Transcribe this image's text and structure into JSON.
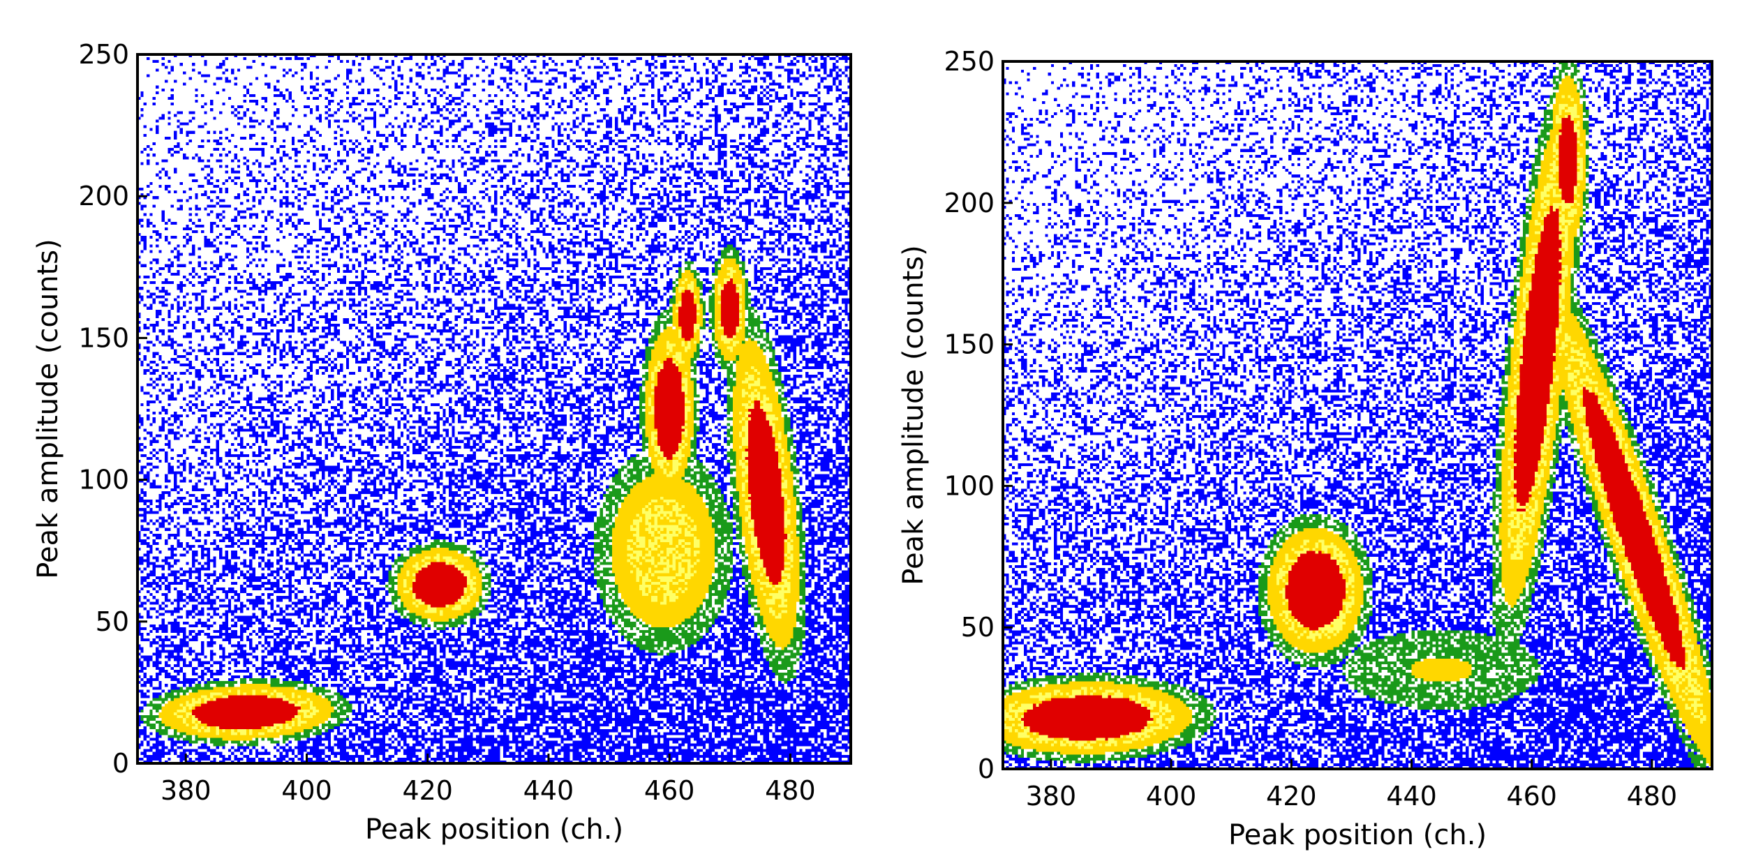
{
  "chart_data": [
    {
      "type": "heatmap",
      "title": "",
      "xlabel": "Peak position (ch.)",
      "ylabel": "Peak amplitude (counts)",
      "xlim": [
        372,
        490
      ],
      "ylim": [
        0,
        250
      ],
      "xticks": [
        380,
        400,
        420,
        440,
        460,
        480
      ],
      "yticks": [
        0,
        50,
        100,
        150,
        200,
        250
      ],
      "colormap": [
        "#ffffff",
        "#0000ff",
        "#1a9a1a",
        "#ffd700",
        "#ffff66",
        "#e00000"
      ],
      "grid": false,
      "clusters": [
        {
          "x": 390,
          "y": 18,
          "sx": 9,
          "sy": 6,
          "rot": 0.12,
          "amp": 1.0
        },
        {
          "x": 422,
          "y": 63,
          "sx": 4.5,
          "sy": 8,
          "rot": 0.0,
          "amp": 1.0
        },
        {
          "x": 459,
          "y": 75,
          "sx": 7,
          "sy": 22,
          "rot": 0.0,
          "amp": 0.6
        },
        {
          "x": 460,
          "y": 125,
          "sx": 2.5,
          "sy": 18,
          "rot": 0.0,
          "amp": 1.0
        },
        {
          "x": 463,
          "y": 158,
          "sx": 1.5,
          "sy": 10,
          "rot": 0.0,
          "amp": 0.95
        },
        {
          "x": 476,
          "y": 95,
          "sx": 3,
          "sy": 35,
          "rot": 0.05,
          "amp": 0.95
        },
        {
          "x": 470,
          "y": 160,
          "sx": 1.8,
          "sy": 12,
          "rot": 0.0,
          "amp": 0.9
        }
      ]
    },
    {
      "type": "heatmap",
      "title": "",
      "xlabel": "Peak position (ch.)",
      "ylabel": "Peak amplitude (counts)",
      "xlim": [
        372,
        490
      ],
      "ylim": [
        0,
        250
      ],
      "xticks": [
        380,
        400,
        420,
        440,
        460,
        480
      ],
      "yticks": [
        0,
        50,
        100,
        150,
        200,
        250
      ],
      "colormap": [
        "#ffffff",
        "#0000ff",
        "#1a9a1a",
        "#ffd700",
        "#ffff66",
        "#e00000"
      ],
      "grid": false,
      "clusters": [
        {
          "x": 386,
          "y": 18,
          "sx": 11,
          "sy": 8,
          "rot": 0.08,
          "amp": 1.0
        },
        {
          "x": 424,
          "y": 63,
          "sx": 5,
          "sy": 14,
          "rot": 0.0,
          "amp": 1.0
        },
        {
          "x": 461,
          "y": 145,
          "sx": 2.8,
          "sy": 55,
          "rot": -0.05,
          "amp": 1.0
        },
        {
          "x": 466,
          "y": 215,
          "sx": 2,
          "sy": 20,
          "rot": 0.0,
          "amp": 0.85
        },
        {
          "x": 477,
          "y": 85,
          "sx": 3,
          "sy": 55,
          "rot": 0.16,
          "amp": 0.95
        },
        {
          "x": 445,
          "y": 35,
          "sx": 14,
          "sy": 12,
          "rot": 0.0,
          "amp": 0.3
        }
      ]
    }
  ]
}
